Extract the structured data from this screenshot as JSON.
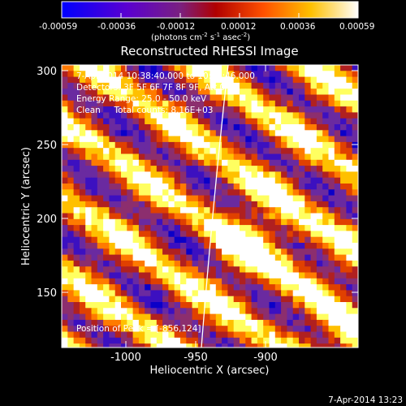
{
  "colorbar": {
    "ticks": [
      "-0.00059",
      "-0.00036",
      "-0.00012",
      "0.00012",
      "0.00036",
      "0.00059"
    ],
    "units_main": "(photons cm",
    "units_sup1": "-2",
    "units_mid": " s",
    "units_sup2": "-1",
    "units_end": " asec",
    "units_sup3": "-2",
    "units_close": ")"
  },
  "plot": {
    "title": "Reconstructed RHESSI Image",
    "xlabel": "Heliocentric X (arcsec)",
    "ylabel": "Heliocentric Y (arcsec)",
    "xticks": [
      "-1000",
      "-950",
      "-900"
    ],
    "yticks": [
      "300",
      "250",
      "200",
      "150"
    ],
    "annotations": {
      "time_range": "7-Apr-2014 10:38:40.000 to 10:42:46.000",
      "detectors": "Detectors: 3F 5F 6F 7F 8F 9F, Att 0",
      "energy_range": "Energy Range: 25.0 - 50.0 keV",
      "method_counts": "Clean     Total counts: 8.16E+03",
      "peak": "Position of Peak = [-856,124]"
    }
  },
  "footer": {
    "timestamp": "7-Apr-2014 13:23"
  },
  "image_data": {
    "x_range": [
      -1045,
      -855
    ],
    "y_range": [
      112,
      307
    ],
    "value_range": [
      -0.00059,
      0.00059
    ],
    "limb_line": "white arc (solar limb)",
    "colors": {
      "colortable": [
        "#0b00c8",
        "#3c10c0",
        "#6a2aa0",
        "#8c2e6e",
        "#b02020",
        "#e04000",
        "#ff7a00",
        "#ffc000",
        "#ffff60",
        "#ffffff"
      ]
    }
  }
}
